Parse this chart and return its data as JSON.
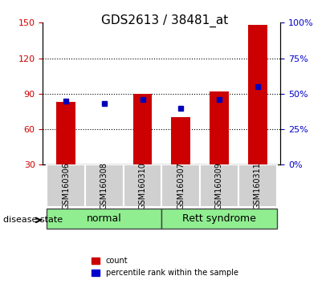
{
  "title": "GDS2613 / 38481_at",
  "categories": [
    "GSM160306",
    "GSM160308",
    "GSM160310",
    "GSM160307",
    "GSM160309",
    "GSM160311"
  ],
  "red_values": [
    83,
    30,
    90,
    70,
    92,
    148
  ],
  "blue_values": [
    45,
    43,
    46,
    40,
    46,
    55
  ],
  "ylim_left": [
    30,
    150
  ],
  "ylim_right": [
    0,
    100
  ],
  "yticks_left": [
    30,
    60,
    90,
    120,
    150
  ],
  "yticks_right": [
    0,
    25,
    50,
    75,
    100
  ],
  "right_tick_labels": [
    "0%",
    "25%",
    "50%",
    "75%",
    "100%"
  ],
  "group_labels": [
    "normal",
    "Rett syndrome"
  ],
  "group_ranges": [
    [
      0,
      3
    ],
    [
      3,
      6
    ]
  ],
  "group_colors": [
    "#90EE90",
    "#90EE90"
  ],
  "disease_state_label": "disease state",
  "legend_items": [
    "count",
    "percentile rank within the sample"
  ],
  "legend_colors": [
    "#CC0000",
    "#0000CC"
  ],
  "bar_color": "#CC0000",
  "dot_color": "#0000BB",
  "tick_color_left": "#CC0000",
  "tick_color_right": "#0000CC",
  "grid_color": "black",
  "bar_width": 0.5,
  "plot_bg": "white",
  "axes_bg": "#e8e8e8"
}
